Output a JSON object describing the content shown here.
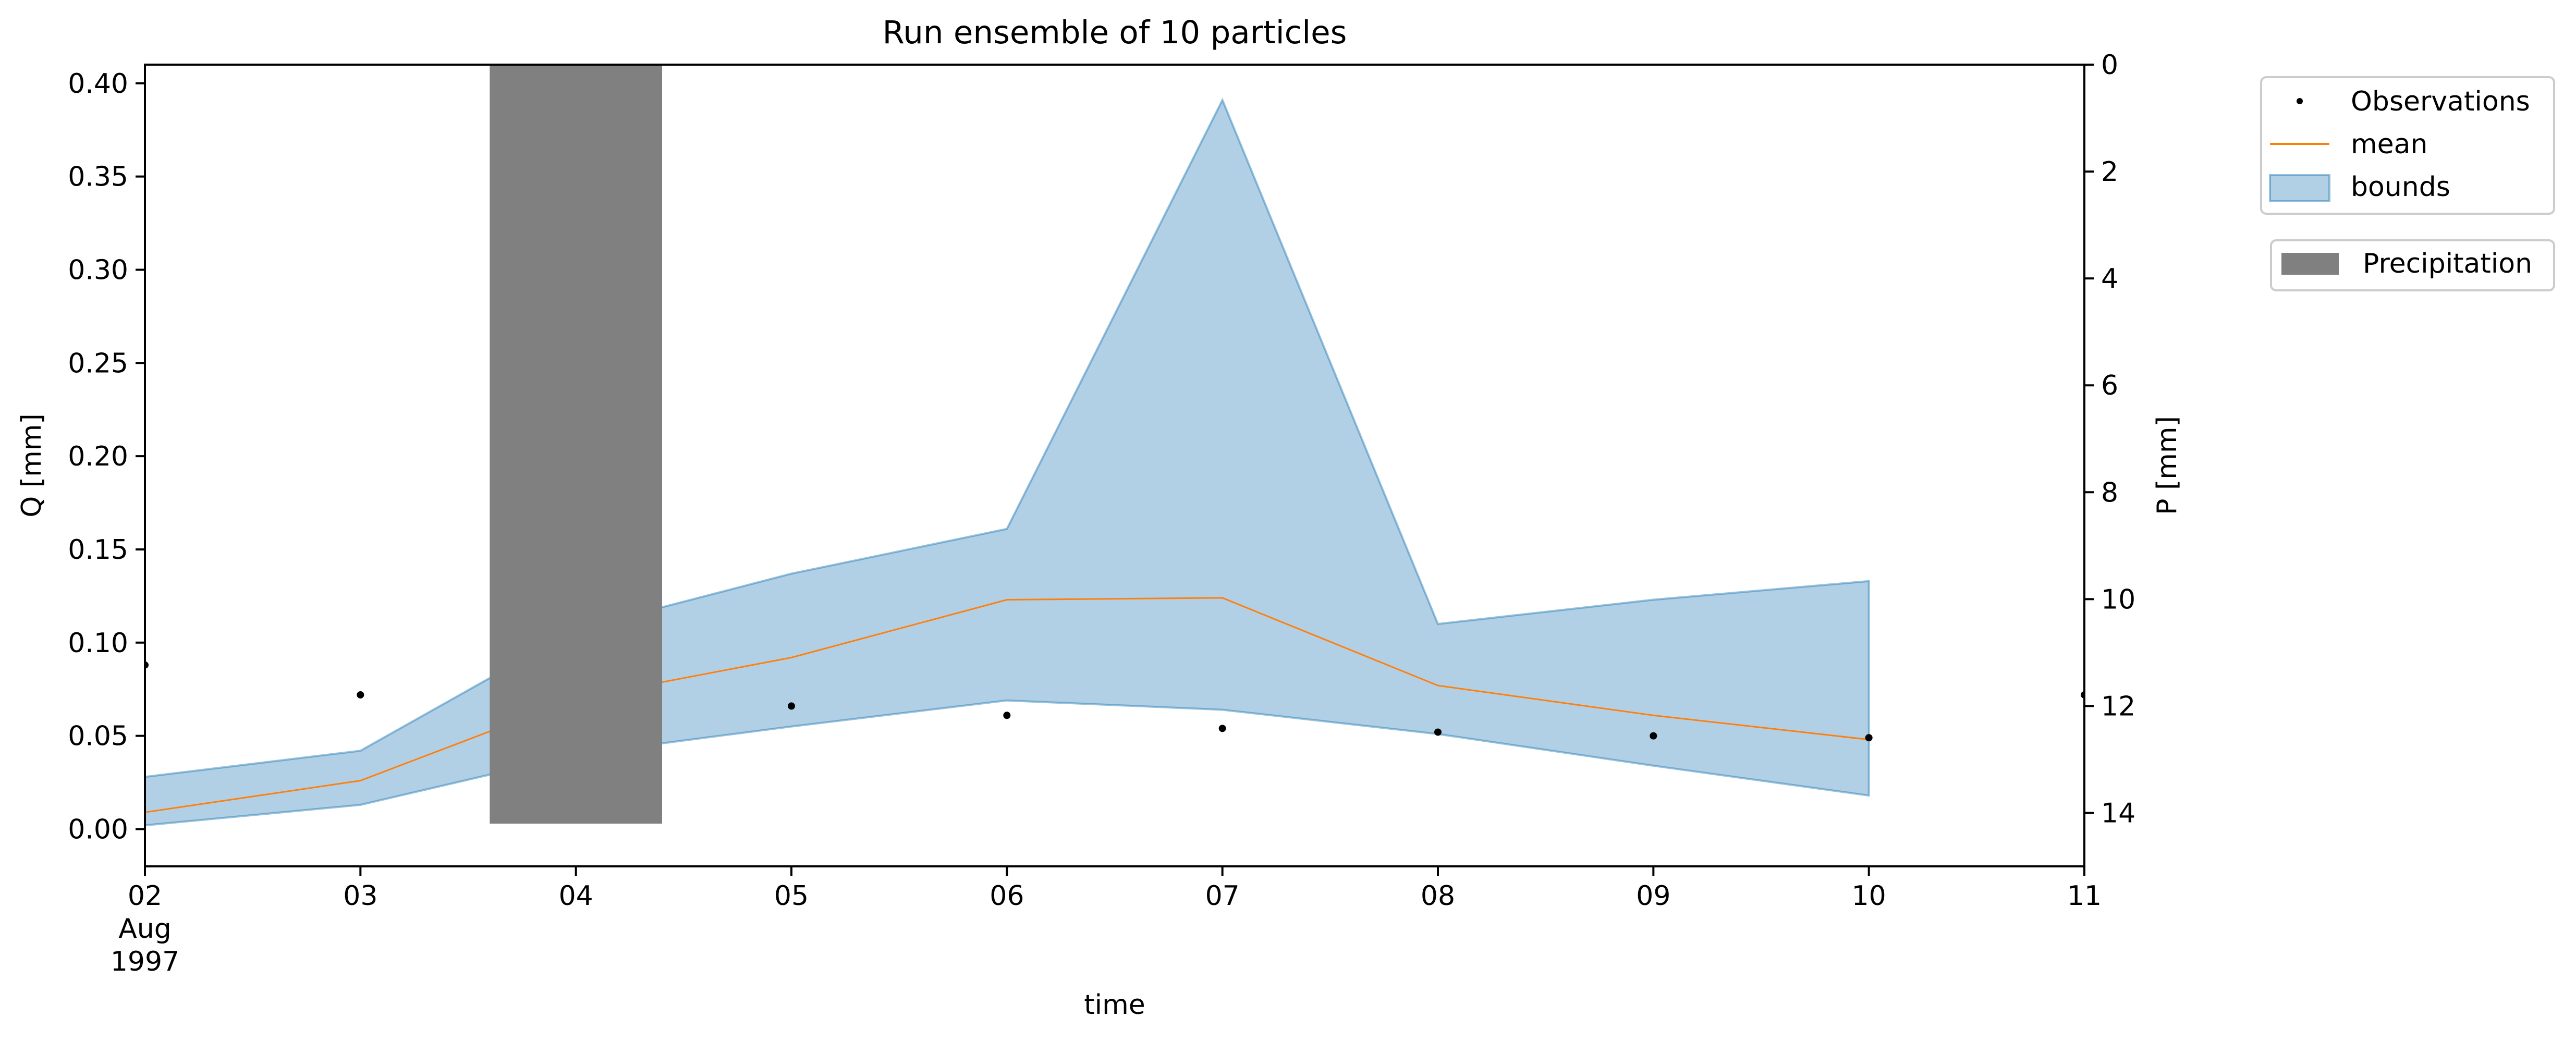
{
  "chart_data": {
    "type": "line",
    "title": "Run ensemble of 10 particles",
    "xlabel": "time",
    "ylabel": "Q [mm]",
    "ylabel_right": "P [mm]",
    "x_tick_labels": [
      [
        "02",
        "Aug",
        "1997"
      ],
      [
        "03"
      ],
      [
        "04"
      ],
      [
        "05"
      ],
      [
        "06"
      ],
      [
        "07"
      ],
      [
        "08"
      ],
      [
        "09"
      ],
      [
        "10"
      ],
      [
        "11"
      ]
    ],
    "x_range": [
      "1997-08-02",
      "1997-08-11"
    ],
    "ylim": [
      -0.02,
      0.41
    ],
    "y_ticks": [
      "0.00",
      "0.05",
      "0.10",
      "0.15",
      "0.20",
      "0.25",
      "0.30",
      "0.35",
      "0.40"
    ],
    "ylim_right": [
      15,
      0
    ],
    "y_ticks_right": [
      "0",
      "2",
      "4",
      "6",
      "8",
      "10",
      "12",
      "14"
    ],
    "series": [
      {
        "name": "Observations",
        "kind": "points",
        "color": "#000000",
        "x": [
          "1997-08-02",
          "1997-08-03",
          "1997-08-05",
          "1997-08-06",
          "1997-08-07",
          "1997-08-08",
          "1997-08-09",
          "1997-08-10",
          "1997-08-11"
        ],
        "values": [
          0.088,
          0.072,
          0.066,
          0.061,
          0.054,
          0.052,
          0.05,
          0.049,
          0.072
        ]
      },
      {
        "name": "mean",
        "kind": "line",
        "color": "#ff7f0e",
        "x": [
          "1997-08-02",
          "1997-08-03",
          "1997-08-04",
          "1997-08-05",
          "1997-08-06",
          "1997-08-07",
          "1997-08-08",
          "1997-08-09",
          "1997-08-10"
        ],
        "values": [
          0.009,
          0.026,
          0.07,
          0.092,
          0.123,
          0.124,
          0.077,
          0.061,
          0.048
        ]
      },
      {
        "name": "bounds",
        "kind": "band",
        "color": "#1f77b4",
        "x": [
          "1997-08-02",
          "1997-08-03",
          "1997-08-04",
          "1997-08-05",
          "1997-08-06",
          "1997-08-07",
          "1997-08-08",
          "1997-08-09",
          "1997-08-10"
        ],
        "upper": [
          0.028,
          0.042,
          0.107,
          0.137,
          0.161,
          0.391,
          0.11,
          0.123,
          0.133
        ],
        "lower": [
          0.002,
          0.013,
          0.04,
          0.055,
          0.069,
          0.064,
          0.051,
          0.034,
          0.018
        ]
      }
    ],
    "precipitation": {
      "name": "Precipitation",
      "color": "#808080",
      "x": [
        "1997-08-04"
      ],
      "values": [
        14.2
      ],
      "bar_width_days": 0.8
    },
    "legend": {
      "placement": "outside-right-top",
      "entries": [
        "Observations",
        "mean",
        "bounds"
      ],
      "entries_secondary": [
        "Precipitation"
      ]
    },
    "grid": false
  }
}
